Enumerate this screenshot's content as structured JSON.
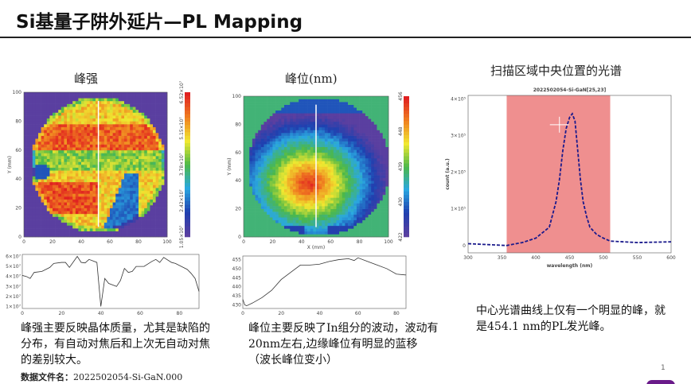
{
  "title": "Si基量子阱外延片—PL Mapping",
  "panels": {
    "intensity_title": "峰强",
    "peak_title": "峰位(nm)",
    "spectrum_title": "扫描区域中央位置的光谱"
  },
  "chart_data": [
    {
      "type": "heatmap",
      "name": "peak-intensity-map",
      "xlabel": "",
      "ylabel": "Y (mm)",
      "xlim": [
        0,
        100
      ],
      "ylim": [
        0,
        100
      ],
      "xticks": [
        "0",
        "20",
        "40",
        "60",
        "80",
        "100"
      ],
      "yticks": [
        "0",
        "20",
        "40",
        "60",
        "80",
        "100"
      ],
      "colorbar_ticks": [
        "1.05×10⁷",
        "2.42×10⁷",
        "3.78×10⁷",
        "5.15×10⁷",
        "6.52×10⁷"
      ],
      "colormap": [
        "#5a3fa0",
        "#1e40b0",
        "#2aa8e0",
        "#4cb848",
        "#f0e830",
        "#f08020",
        "#e02020"
      ],
      "linecut_x": 52
    },
    {
      "type": "heatmap",
      "name": "peak-position-map",
      "xlabel": "X (mm)",
      "ylabel": "Y (mm)",
      "xlim": [
        0,
        100
      ],
      "ylim": [
        0,
        100
      ],
      "xticks": [
        "0",
        "20",
        "40",
        "60",
        "80",
        "100"
      ],
      "yticks": [
        "0",
        "20",
        "40",
        "60",
        "80",
        "100"
      ],
      "colorbar_ticks": [
        "422",
        "430",
        "439",
        "448",
        "456"
      ],
      "linecut_x": 50
    },
    {
      "type": "line",
      "name": "intensity-profile",
      "xlim": [
        0,
        90
      ],
      "ylim": [
        0.8,
        6.2
      ],
      "xticks": [
        "0",
        "20",
        "40",
        "60",
        "80"
      ],
      "yticks": [
        "1×10⁷",
        "2×10⁷",
        "3×10⁷",
        "4×10⁷",
        "5×10⁷",
        "6×10⁷"
      ],
      "x": [
        0,
        2,
        4,
        6,
        10,
        14,
        16,
        20,
        22,
        24,
        28,
        30,
        32,
        34,
        38,
        40,
        42,
        44,
        48,
        50,
        52,
        54,
        56,
        58,
        62,
        66,
        68,
        70,
        72,
        76,
        78,
        82,
        84,
        86,
        88,
        90
      ],
      "y": [
        4.1,
        4.0,
        3.8,
        4.4,
        4.5,
        4.9,
        5.3,
        5.4,
        5.4,
        4.9,
        6.0,
        5.4,
        5.35,
        5.7,
        5.4,
        1.0,
        3.8,
        3.3,
        3.0,
        3.6,
        4.8,
        4.4,
        4.5,
        5.0,
        5.0,
        5.5,
        5.7,
        5.4,
        5.9,
        5.4,
        5.3,
        4.9,
        4.7,
        4.3,
        3.8,
        2.5
      ]
    },
    {
      "type": "line",
      "name": "peak-position-profile",
      "xlim": [
        0,
        85
      ],
      "ylim": [
        428,
        457
      ],
      "xticks": [
        "0",
        "20",
        "40",
        "60",
        "80"
      ],
      "yticks": [
        "430",
        "435",
        "440",
        "445",
        "450",
        "455"
      ],
      "x": [
        0,
        1,
        2,
        5,
        10,
        15,
        20,
        25,
        30,
        35,
        40,
        45,
        50,
        55,
        58,
        60,
        65,
        70,
        75,
        80,
        85
      ],
      "y": [
        433,
        430,
        429.5,
        431,
        434,
        438,
        444,
        448,
        452,
        452,
        452.5,
        454,
        455,
        455.5,
        454.5,
        456,
        454,
        452,
        450,
        447,
        446.5
      ]
    },
    {
      "type": "line",
      "name": "pl-spectrum",
      "title": "2022502054-Si-GaN[25,23]",
      "xlabel": "wavelength (nm)",
      "ylabel": "count (a.u.)",
      "xlim": [
        300,
        600
      ],
      "ylim": [
        -0.2,
        4.1
      ],
      "xticks": [
        "300",
        "350",
        "400",
        "450",
        "500",
        "550",
        "600"
      ],
      "yticks": [
        "0",
        "1×10⁵",
        "2×10⁵",
        "3×10⁵",
        "4×10⁵"
      ],
      "highlight_range": [
        357,
        510
      ],
      "highlight_color": "#ef8f8f",
      "line_color": "#1a1a8c",
      "x": [
        300,
        357,
        380,
        400,
        420,
        430,
        435,
        440,
        445,
        450,
        454,
        458,
        462,
        466,
        470,
        475,
        480,
        490,
        500,
        510,
        550,
        600
      ],
      "y": [
        0.05,
        0.0,
        0.08,
        0.2,
        0.5,
        1.2,
        1.8,
        2.6,
        3.2,
        3.5,
        3.6,
        3.4,
        2.6,
        1.8,
        1.2,
        0.8,
        0.5,
        0.3,
        0.2,
        0.12,
        0.08,
        0.1
      ],
      "marker": [
        435,
        3.3
      ]
    }
  ],
  "descriptions": {
    "intensity": "峰强主要反映晶体质量，尤其是缺陷的分布，有自动对焦后和上次无自动对焦的差别较大。",
    "peak": "峰位主要反映了In组分的波动，波动有20nm左右,边缘峰位有明显的蓝移（波长峰位变小）",
    "spectrum": "中心光谱曲线上仅有一个明显的峰，就是454.1 nm的PL发光峰。"
  },
  "footer": {
    "file_label": "数据文件名：",
    "file_name": "2022502054-Si-GaN.000",
    "page_number": "1"
  }
}
